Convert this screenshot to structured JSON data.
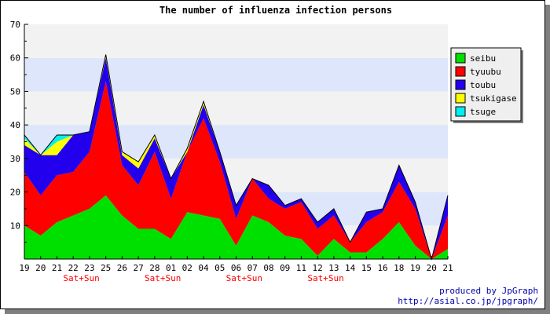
{
  "chart_data": {
    "type": "area",
    "stacked": true,
    "title": "The number of influenza infection persons",
    "categories": [
      "19",
      "20",
      "21",
      "22",
      "23",
      "25",
      "26",
      "27",
      "28",
      "01",
      "02",
      "04",
      "05",
      "06",
      "07",
      "08",
      "09",
      "11",
      "12",
      "13",
      "14",
      "15",
      "16",
      "18",
      "19",
      "20",
      "21"
    ],
    "weekend_markers": [
      {
        "after_index": 3,
        "label": "Sat+Sun"
      },
      {
        "after_index": 8,
        "label": "Sat+Sun"
      },
      {
        "after_index": 13,
        "label": "Sat+Sun"
      },
      {
        "after_index": 18,
        "label": "Sat+Sun"
      }
    ],
    "ylim": [
      0,
      70
    ],
    "yticks": [
      10,
      20,
      30,
      40,
      50,
      60,
      70
    ],
    "grid": true,
    "band_colors": [
      "#f2f2f2",
      "#dde6fb"
    ],
    "legend_position": "right",
    "series": [
      {
        "name": "seibu",
        "color": "#00e000",
        "values": [
          10,
          7,
          11,
          13,
          15,
          19,
          13,
          9,
          9,
          6,
          14,
          13,
          12,
          4,
          13,
          11,
          7,
          6,
          1,
          6,
          2,
          2,
          6,
          11,
          4,
          0,
          3
        ]
      },
      {
        "name": "tyuubu",
        "color": "#ff0000",
        "values": [
          16,
          12,
          14,
          13,
          17,
          34,
          15,
          13,
          23,
          12,
          18,
          29,
          17,
          8,
          11,
          7,
          8,
          11,
          8,
          7,
          3,
          9,
          8,
          12,
          11,
          0,
          10
        ]
      },
      {
        "name": "toubu",
        "color": "#2200ee",
        "values": [
          8,
          12,
          6,
          11,
          6,
          7,
          3,
          5,
          4,
          6,
          0,
          4,
          3,
          4,
          0,
          4,
          1,
          1,
          2,
          2,
          0,
          3,
          1,
          5,
          2,
          0,
          6
        ]
      },
      {
        "name": "tsukigase",
        "color": "#ffff00",
        "values": [
          2,
          0,
          4,
          0,
          0,
          1,
          1,
          2,
          1,
          0,
          1,
          1,
          0,
          0,
          0,
          0,
          0,
          0,
          0,
          0,
          0,
          0,
          0,
          0,
          0,
          0,
          0
        ]
      },
      {
        "name": "tsuge",
        "color": "#00f0f0",
        "values": [
          1,
          0,
          2,
          0,
          0,
          0,
          0,
          0,
          0,
          0,
          0,
          0,
          0,
          0,
          0,
          0,
          0,
          0,
          0,
          0,
          0,
          0,
          0,
          0,
          0,
          0,
          0
        ]
      }
    ]
  },
  "credits": {
    "line1": "produced by JpGraph",
    "line2": "http://asial.co.jp/jpgraph/"
  }
}
